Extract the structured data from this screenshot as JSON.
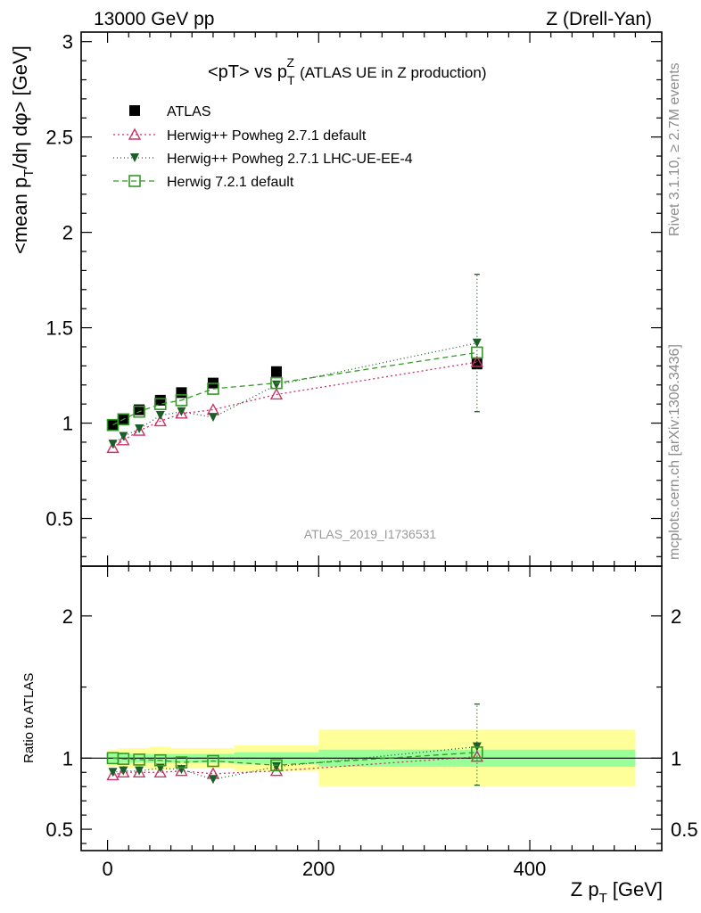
{
  "header": {
    "left": "13000 GeV pp",
    "right": "Z (Drell-Yan)"
  },
  "side_text": {
    "rivet": "Rivet 3.1.10, ≥ 2.7M events",
    "mcplots": "mcplots.cern.ch [arXiv:1306.3436]"
  },
  "chart_data": {
    "type": "scatter",
    "title_main": "<pT> vs p",
    "title_sup": "Z",
    "title_sub": "T",
    "title_rest": "(ATLAS UE in Z production)",
    "analysis_id": "ATLAS_2019_I1736531",
    "ylabel": "<mean p_T/dη dφ> [GeV]",
    "ylabel_parts": [
      "<mean p",
      "T",
      "/dη dφ> [GeV]"
    ],
    "xlabel_main": "Z p",
    "xlabel_sub": "T",
    "xlabel_unit": "[GeV]",
    "ratio_ylabel": "Ratio to ATLAS",
    "xlim": [
      -25,
      525
    ],
    "ylim": [
      0.25,
      3.05
    ],
    "ratio_ylim": [
      0.35,
      2.35
    ],
    "x_ticks": [
      0,
      200,
      400
    ],
    "x_tick_labels": [
      "0",
      "200",
      "400"
    ],
    "y_ticks": [
      0.5,
      1,
      1.5,
      2,
      2.5,
      3
    ],
    "y_tick_labels": [
      "0.5",
      "1",
      "1.5",
      "2",
      "2.5",
      "3"
    ],
    "ratio_y_ticks": [
      0.5,
      1,
      2
    ],
    "ratio_y_tick_labels": [
      "0.5",
      "1",
      "2"
    ],
    "bin_edges": [
      0,
      10,
      20,
      40,
      60,
      80,
      120,
      200,
      500
    ],
    "x": [
      5,
      15,
      30,
      50,
      70,
      100,
      160,
      350
    ],
    "band_inner": [
      0.03,
      0.03,
      0.03,
      0.03,
      0.03,
      0.03,
      0.04,
      0.06
    ],
    "band_outer": [
      0.03,
      0.04,
      0.04,
      0.05,
      0.04,
      0.04,
      0.05,
      0.14
    ],
    "series": [
      {
        "name": "ATLAS",
        "color": "#000000",
        "marker": "square-filled",
        "dash": "",
        "values": [
          0.99,
          1.02,
          1.07,
          1.12,
          1.16,
          1.21,
          1.27,
          1.31
        ]
      },
      {
        "name": "Herwig++ Powheg 2.7.1 default",
        "color": "#cc3366",
        "marker": "triangle-open",
        "dash": "2,3",
        "values": [
          0.87,
          0.91,
          0.96,
          1.01,
          1.05,
          1.07,
          1.15,
          1.32
        ],
        "ratio": [
          0.88,
          0.9,
          0.9,
          0.9,
          0.91,
          0.89,
          0.91,
          1.01
        ]
      },
      {
        "name": "Herwig++ Powheg 2.7.1 LHC-UE-EE-4",
        "color": "#1a5e2a",
        "marker": "triangle-down-filled",
        "dash": "1,3",
        "values": [
          0.89,
          0.93,
          0.97,
          1.04,
          1.06,
          1.03,
          1.2,
          1.42
        ],
        "err_high": 1.78,
        "err_low": 1.06,
        "ratio": [
          0.9,
          0.91,
          0.91,
          0.93,
          0.92,
          0.85,
          0.94,
          1.08
        ],
        "ratio_err_high": 1.38,
        "ratio_err_low": 0.81
      },
      {
        "name": "Herwig 7.2.1 default",
        "color": "#339922",
        "marker": "square-open",
        "dash": "6,4",
        "values": [
          0.99,
          1.02,
          1.06,
          1.1,
          1.12,
          1.18,
          1.21,
          1.37
        ],
        "ratio": [
          1.0,
          0.995,
          0.99,
          0.985,
          0.97,
          0.98,
          0.95,
          1.04
        ]
      }
    ]
  }
}
